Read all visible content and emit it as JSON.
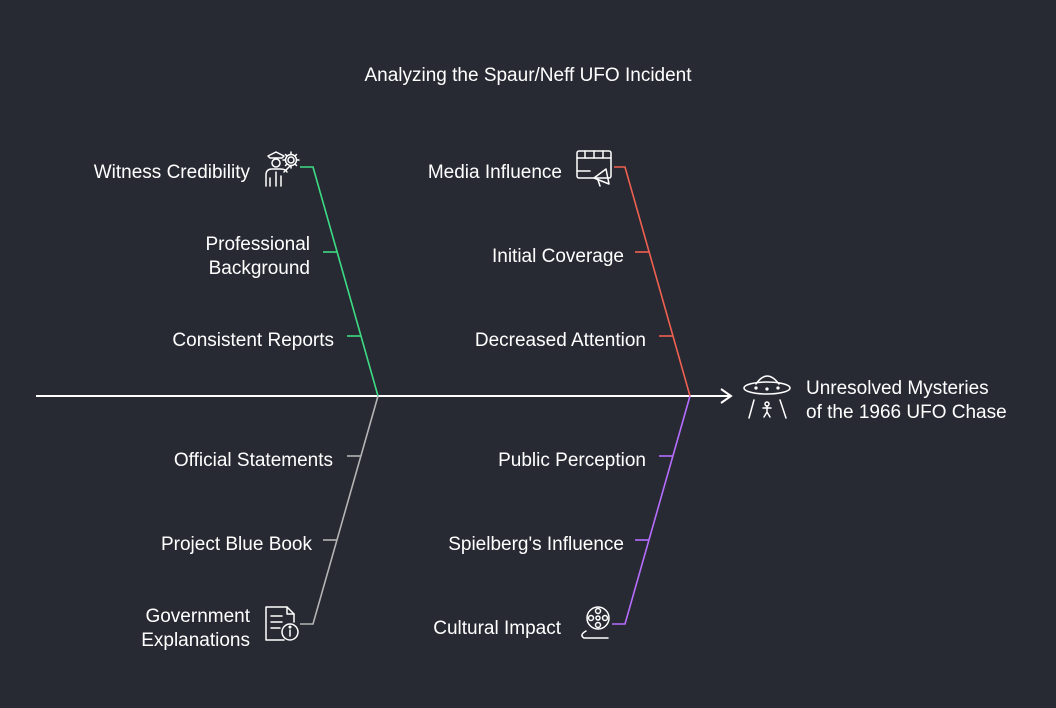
{
  "title": "Analyzing the Spaur/Neff UFO Incident",
  "effect": "Unresolved Mysteries\nof the 1966 UFO Chase",
  "colors": {
    "background": "#272a33",
    "spine": "#ffffff",
    "witness": "#3ddc84",
    "media": "#f06050",
    "government": "#b4b4b4",
    "cultural": "#b66dff"
  },
  "categories": {
    "witness": {
      "label": "Witness Credibility",
      "icon": "police-officer-gear-icon",
      "causes": [
        "Professional\nBackground",
        "Consistent Reports"
      ]
    },
    "media": {
      "label": "Media Influence",
      "icon": "media-megaphone-icon",
      "causes": [
        "Initial Coverage",
        "Decreased Attention"
      ]
    },
    "government": {
      "label": "Government\nExplanations",
      "icon": "document-info-icon",
      "causes": [
        "Official Statements",
        "Project Blue Book"
      ]
    },
    "cultural": {
      "label": "Cultural Impact",
      "icon": "film-reel-icon",
      "causes": [
        "Public Perception",
        "Spielberg's Influence"
      ]
    }
  },
  "effect_icon": "ufo-icon"
}
